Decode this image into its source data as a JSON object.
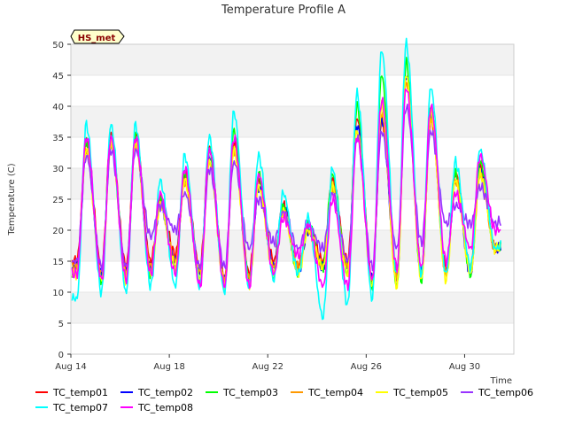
{
  "chart_data": {
    "type": "line",
    "title": "Temperature Profile A",
    "ylabel": "Temperature (C)",
    "xlabel": "Time",
    "badge": "HS_met",
    "x_start": "2024-08-14",
    "x_end": "2024-08-31",
    "xlim": [
      "2024-08-14",
      "2024-09-01"
    ],
    "ylim": [
      0,
      50
    ],
    "yticks": [
      0,
      5,
      10,
      15,
      20,
      25,
      30,
      35,
      40,
      45,
      50
    ],
    "xticks": [
      {
        "date": "2024-08-14",
        "label": "Aug 14"
      },
      {
        "date": "2024-08-18",
        "label": "Aug 18"
      },
      {
        "date": "2024-08-22",
        "label": "Aug 22"
      },
      {
        "date": "2024-08-26",
        "label": "Aug 26"
      },
      {
        "date": "2024-08-30",
        "label": "Aug 30"
      }
    ],
    "background_bands": "alternating light gray",
    "legend_position": "bottom",
    "daily_extremes_note_values": {
      "dates": [
        "Aug 14",
        "Aug 15",
        "Aug 16",
        "Aug 17",
        "Aug 18",
        "Aug 19",
        "Aug 20",
        "Aug 21",
        "Aug 22",
        "Aug 23",
        "Aug 24",
        "Aug 25",
        "Aug 26",
        "Aug 27",
        "Aug 28",
        "Aug 29",
        "Aug 30",
        "Aug 31"
      ]
    },
    "series": [
      {
        "name": "TC_temp01",
        "color": "#ff0000",
        "min": [
          15,
          14,
          14,
          15,
          16,
          14,
          12,
          13,
          15,
          14,
          15,
          15,
          12,
          13,
          14,
          14,
          14,
          17
        ],
        "max": [
          34,
          35,
          35,
          25,
          29,
          33,
          34,
          28,
          24,
          21,
          28,
          38,
          38,
          44,
          38,
          29,
          30,
          18
        ]
      },
      {
        "name": "TC_temp02",
        "color": "#0000ff",
        "min": [
          14,
          13,
          13,
          14,
          15,
          13,
          12,
          12,
          14,
          13,
          14,
          14,
          12,
          12,
          13,
          13,
          13,
          17
        ],
        "max": [
          33,
          34,
          34,
          24,
          28,
          32,
          33,
          27,
          24,
          20,
          27,
          37,
          38,
          45,
          39,
          28,
          30,
          18
        ]
      },
      {
        "name": "TC_temp03",
        "color": "#00ff00",
        "min": [
          13,
          12,
          12,
          13,
          14,
          12,
          11,
          12,
          13,
          13,
          14,
          13,
          11,
          11,
          12,
          13,
          13,
          17
        ],
        "max": [
          34,
          35,
          35,
          25,
          29,
          33,
          36,
          29,
          24,
          21,
          29,
          40,
          45,
          47,
          40,
          29,
          31,
          18
        ]
      },
      {
        "name": "TC_temp04",
        "color": "#ff9900",
        "min": [
          14,
          13,
          13,
          14,
          15,
          13,
          12,
          12,
          14,
          14,
          14,
          14,
          12,
          12,
          13,
          13,
          14,
          17
        ],
        "max": [
          33,
          34,
          34,
          24,
          28,
          31,
          33,
          27,
          23,
          20,
          27,
          36,
          39,
          44,
          38,
          28,
          29,
          18
        ]
      },
      {
        "name": "TC_temp05",
        "color": "#ffff00",
        "min": [
          13,
          12,
          12,
          13,
          14,
          12,
          11,
          11,
          13,
          13,
          14,
          13,
          11,
          11,
          12,
          12,
          13,
          17
        ],
        "max": [
          33,
          34,
          34,
          24,
          28,
          31,
          33,
          27,
          23,
          20,
          27,
          36,
          40,
          45,
          39,
          28,
          29,
          18
        ]
      },
      {
        "name": "TC_temp06",
        "color": "#9933ff",
        "min": [
          15,
          14,
          14,
          19,
          20,
          14,
          14,
          17,
          18,
          17,
          17,
          15,
          14,
          17,
          18,
          21,
          21,
          21
        ],
        "max": [
          32,
          33,
          33,
          24,
          26,
          30,
          31,
          25,
          23,
          21,
          26,
          35,
          36,
          40,
          36,
          24,
          27,
          22
        ]
      },
      {
        "name": "TC_temp07",
        "color": "#00ffff",
        "min": [
          9,
          10,
          10,
          11,
          11,
          11,
          10,
          11,
          12,
          13,
          6,
          8,
          9,
          13,
          13,
          13,
          14,
          17
        ],
        "max": [
          37,
          37,
          37,
          28,
          32,
          35,
          39,
          32,
          26,
          22,
          30,
          42,
          49,
          50,
          43,
          31,
          33,
          18
        ]
      },
      {
        "name": "TC_temp08",
        "color": "#ff00ff",
        "min": [
          13,
          12,
          12,
          13,
          13,
          11,
          11,
          11,
          13,
          16,
          11,
          11,
          12,
          14,
          14,
          15,
          17,
          20
        ],
        "max": [
          35,
          35,
          35,
          26,
          30,
          33,
          35,
          29,
          22,
          21,
          25,
          35,
          41,
          43,
          40,
          26,
          32,
          20
        ]
      }
    ]
  }
}
